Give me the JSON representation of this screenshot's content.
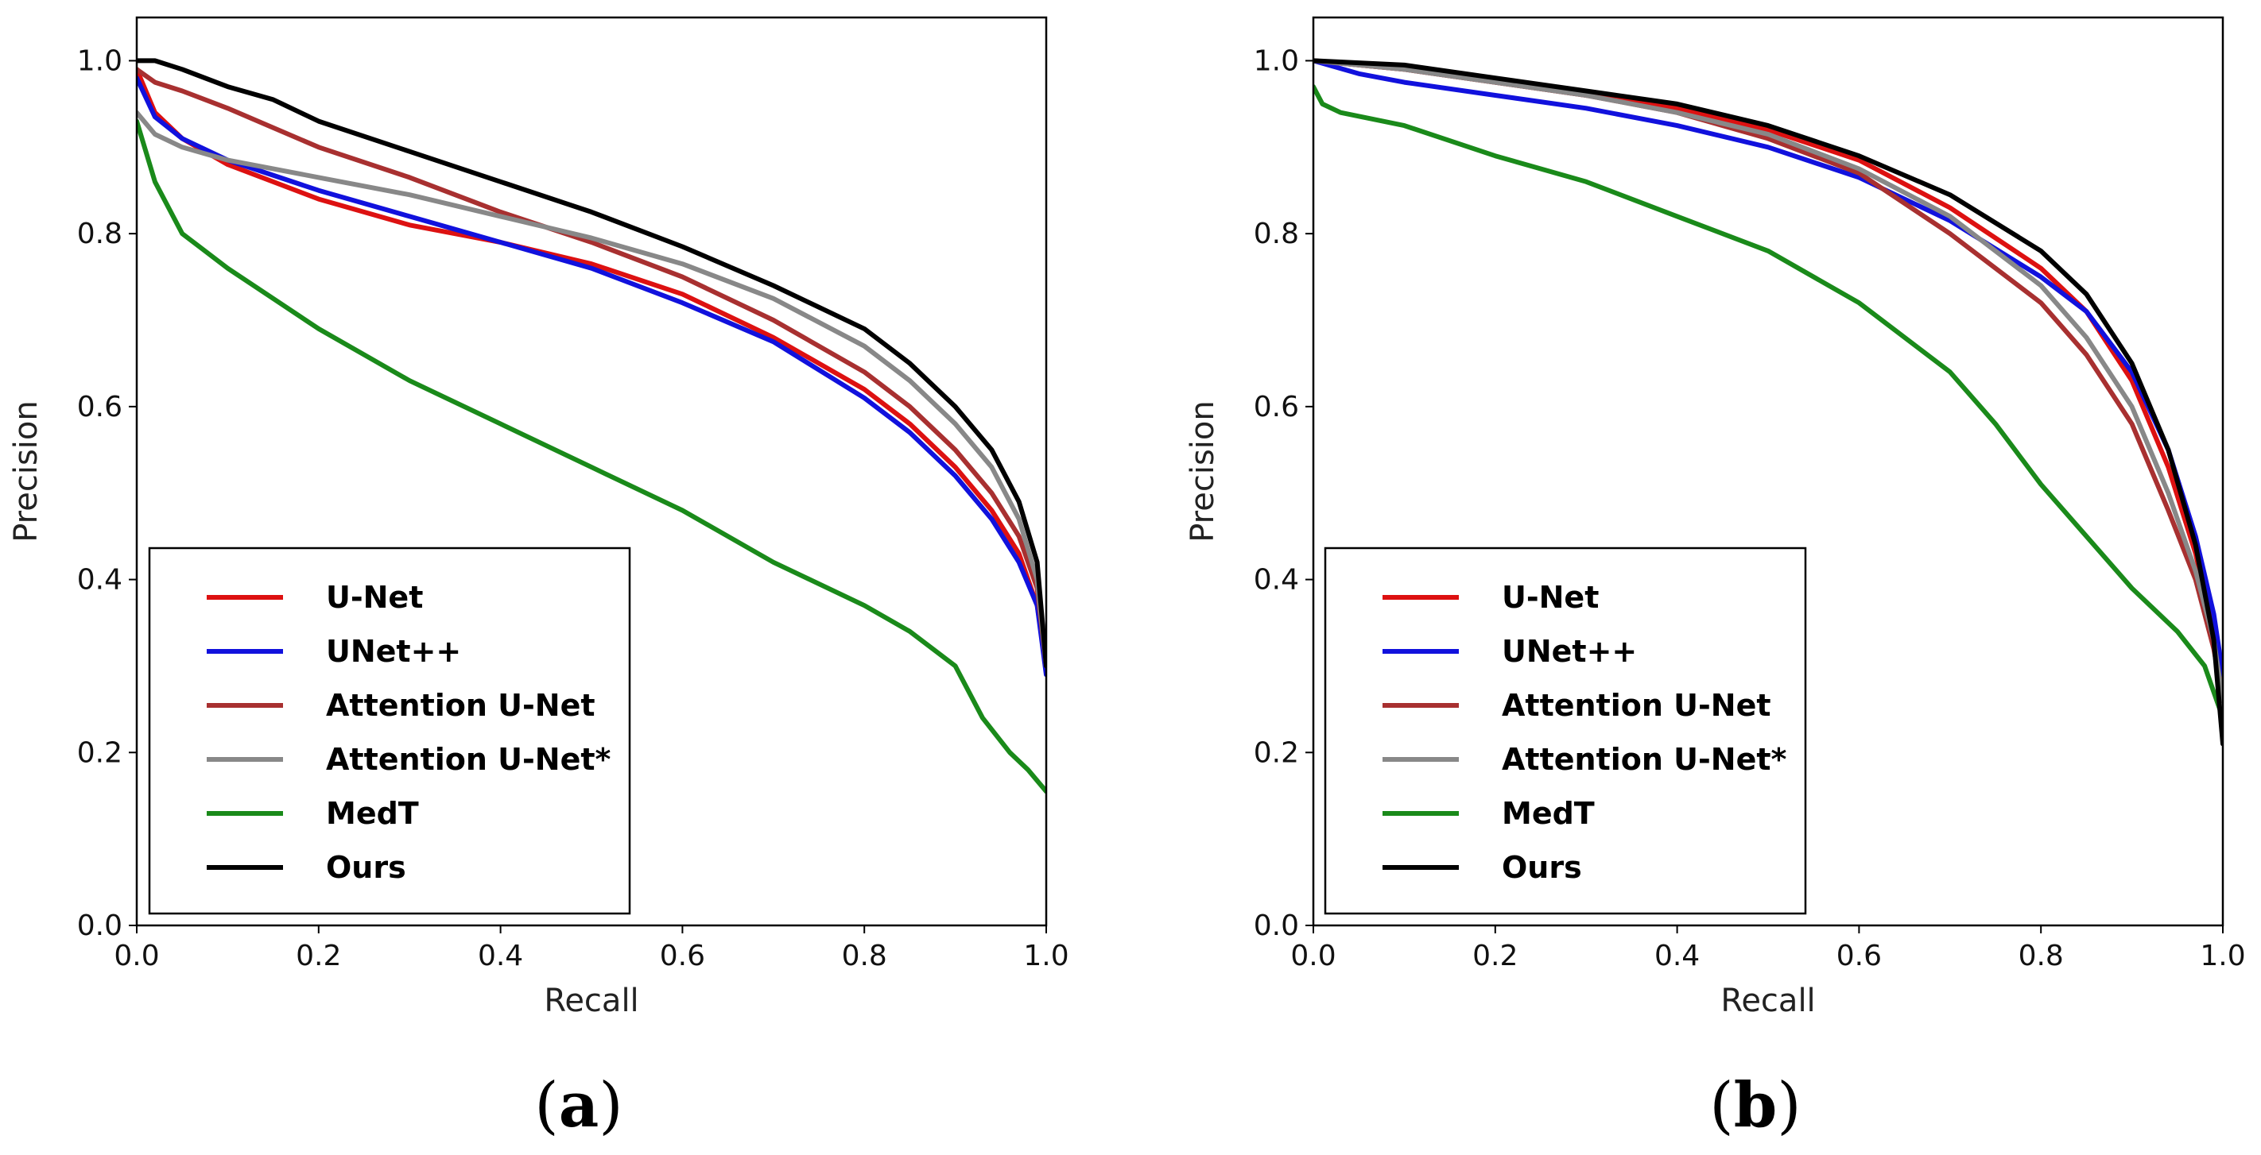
{
  "chart_data": [
    {
      "type": "line",
      "panel": "a",
      "caption": {
        "open": "(",
        "letter": "a",
        "close": ")"
      },
      "xlabel": "Recall",
      "ylabel": "Precision",
      "xlim": [
        0,
        1
      ],
      "ylim": [
        0,
        1.05
      ],
      "xticks": [
        "0.0",
        "0.2",
        "0.4",
        "0.6",
        "0.8",
        "1.0"
      ],
      "yticks": [
        "0.0",
        "0.2",
        "0.4",
        "0.6",
        "0.8",
        "1.0"
      ],
      "legend_position": "lower-left",
      "series": [
        {
          "name": "U-Net",
          "color": "#dd1111",
          "points": [
            [
              0,
              0.99
            ],
            [
              0.02,
              0.94
            ],
            [
              0.05,
              0.91
            ],
            [
              0.1,
              0.88
            ],
            [
              0.2,
              0.84
            ],
            [
              0.3,
              0.81
            ],
            [
              0.4,
              0.79
            ],
            [
              0.5,
              0.765
            ],
            [
              0.6,
              0.73
            ],
            [
              0.7,
              0.68
            ],
            [
              0.8,
              0.62
            ],
            [
              0.85,
              0.58
            ],
            [
              0.9,
              0.53
            ],
            [
              0.94,
              0.48
            ],
            [
              0.97,
              0.43
            ],
            [
              0.99,
              0.37
            ],
            [
              1.0,
              0.3
            ]
          ]
        },
        {
          "name": "UNet++",
          "color": "#1111dd",
          "points": [
            [
              0,
              0.98
            ],
            [
              0.02,
              0.935
            ],
            [
              0.05,
              0.91
            ],
            [
              0.1,
              0.885
            ],
            [
              0.2,
              0.85
            ],
            [
              0.3,
              0.82
            ],
            [
              0.4,
              0.79
            ],
            [
              0.5,
              0.76
            ],
            [
              0.6,
              0.72
            ],
            [
              0.7,
              0.675
            ],
            [
              0.8,
              0.61
            ],
            [
              0.85,
              0.57
            ],
            [
              0.9,
              0.52
            ],
            [
              0.94,
              0.47
            ],
            [
              0.97,
              0.42
            ],
            [
              0.99,
              0.37
            ],
            [
              1.0,
              0.29
            ]
          ]
        },
        {
          "name": "Attention U-Net",
          "color": "#a83030",
          "points": [
            [
              0,
              0.99
            ],
            [
              0.02,
              0.975
            ],
            [
              0.05,
              0.965
            ],
            [
              0.1,
              0.945
            ],
            [
              0.2,
              0.9
            ],
            [
              0.3,
              0.865
            ],
            [
              0.4,
              0.825
            ],
            [
              0.5,
              0.79
            ],
            [
              0.6,
              0.75
            ],
            [
              0.7,
              0.7
            ],
            [
              0.8,
              0.64
            ],
            [
              0.85,
              0.6
            ],
            [
              0.9,
              0.55
            ],
            [
              0.94,
              0.5
            ],
            [
              0.97,
              0.45
            ],
            [
              0.99,
              0.39
            ],
            [
              1.0,
              0.3
            ]
          ]
        },
        {
          "name": "Attention U-Net*",
          "color": "#888888",
          "points": [
            [
              0,
              0.94
            ],
            [
              0.02,
              0.915
            ],
            [
              0.05,
              0.9
            ],
            [
              0.1,
              0.885
            ],
            [
              0.2,
              0.865
            ],
            [
              0.3,
              0.845
            ],
            [
              0.4,
              0.82
            ],
            [
              0.5,
              0.795
            ],
            [
              0.6,
              0.765
            ],
            [
              0.7,
              0.725
            ],
            [
              0.8,
              0.67
            ],
            [
              0.85,
              0.63
            ],
            [
              0.9,
              0.58
            ],
            [
              0.94,
              0.53
            ],
            [
              0.97,
              0.47
            ],
            [
              0.99,
              0.4
            ],
            [
              1.0,
              0.3
            ]
          ]
        },
        {
          "name": "MedT",
          "color": "#1a8a1a",
          "points": [
            [
              0,
              0.93
            ],
            [
              0.02,
              0.86
            ],
            [
              0.05,
              0.8
            ],
            [
              0.1,
              0.76
            ],
            [
              0.2,
              0.69
            ],
            [
              0.3,
              0.63
            ],
            [
              0.4,
              0.58
            ],
            [
              0.5,
              0.53
            ],
            [
              0.6,
              0.48
            ],
            [
              0.7,
              0.42
            ],
            [
              0.8,
              0.37
            ],
            [
              0.85,
              0.34
            ],
            [
              0.9,
              0.3
            ],
            [
              0.93,
              0.24
            ],
            [
              0.96,
              0.2
            ],
            [
              0.98,
              0.18
            ],
            [
              1.0,
              0.155
            ]
          ]
        },
        {
          "name": "Ours",
          "color": "#000000",
          "points": [
            [
              0,
              1.0
            ],
            [
              0.02,
              1.0
            ],
            [
              0.05,
              0.99
            ],
            [
              0.1,
              0.97
            ],
            [
              0.15,
              0.955
            ],
            [
              0.2,
              0.93
            ],
            [
              0.3,
              0.895
            ],
            [
              0.4,
              0.86
            ],
            [
              0.5,
              0.825
            ],
            [
              0.6,
              0.785
            ],
            [
              0.7,
              0.74
            ],
            [
              0.8,
              0.69
            ],
            [
              0.85,
              0.65
            ],
            [
              0.9,
              0.6
            ],
            [
              0.94,
              0.55
            ],
            [
              0.97,
              0.49
            ],
            [
              0.99,
              0.42
            ],
            [
              1.0,
              0.3
            ]
          ]
        }
      ]
    },
    {
      "type": "line",
      "panel": "b",
      "caption": {
        "open": "(",
        "letter": "b",
        "close": ")"
      },
      "xlabel": "Recall",
      "ylabel": "Precision",
      "xlim": [
        0,
        1
      ],
      "ylim": [
        0,
        1.05
      ],
      "xticks": [
        "0.0",
        "0.2",
        "0.4",
        "0.6",
        "0.8",
        "1.0"
      ],
      "yticks": [
        "0.0",
        "0.2",
        "0.4",
        "0.6",
        "0.8",
        "1.0"
      ],
      "legend_position": "lower-left",
      "series": [
        {
          "name": "U-Net",
          "color": "#dd1111",
          "points": [
            [
              0,
              1.0
            ],
            [
              0.1,
              0.99
            ],
            [
              0.2,
              0.975
            ],
            [
              0.3,
              0.96
            ],
            [
              0.4,
              0.945
            ],
            [
              0.5,
              0.92
            ],
            [
              0.6,
              0.885
            ],
            [
              0.7,
              0.83
            ],
            [
              0.8,
              0.76
            ],
            [
              0.85,
              0.71
            ],
            [
              0.9,
              0.63
            ],
            [
              0.94,
              0.53
            ],
            [
              0.97,
              0.43
            ],
            [
              0.99,
              0.34
            ],
            [
              1.0,
              0.27
            ]
          ]
        },
        {
          "name": "UNet++",
          "color": "#1111dd",
          "points": [
            [
              0,
              1.0
            ],
            [
              0.05,
              0.985
            ],
            [
              0.1,
              0.975
            ],
            [
              0.2,
              0.96
            ],
            [
              0.3,
              0.945
            ],
            [
              0.4,
              0.925
            ],
            [
              0.5,
              0.9
            ],
            [
              0.6,
              0.865
            ],
            [
              0.7,
              0.815
            ],
            [
              0.8,
              0.75
            ],
            [
              0.85,
              0.71
            ],
            [
              0.9,
              0.64
            ],
            [
              0.94,
              0.55
            ],
            [
              0.97,
              0.45
            ],
            [
              0.99,
              0.36
            ],
            [
              1.0,
              0.29
            ]
          ]
        },
        {
          "name": "Attention U-Net",
          "color": "#a83030",
          "points": [
            [
              0,
              1.0
            ],
            [
              0.1,
              0.99
            ],
            [
              0.2,
              0.975
            ],
            [
              0.3,
              0.96
            ],
            [
              0.4,
              0.94
            ],
            [
              0.5,
              0.91
            ],
            [
              0.6,
              0.87
            ],
            [
              0.7,
              0.8
            ],
            [
              0.8,
              0.72
            ],
            [
              0.85,
              0.66
            ],
            [
              0.9,
              0.58
            ],
            [
              0.94,
              0.48
            ],
            [
              0.97,
              0.4
            ],
            [
              0.99,
              0.32
            ],
            [
              1.0,
              0.26
            ]
          ]
        },
        {
          "name": "Attention U-Net*",
          "color": "#888888",
          "points": [
            [
              0,
              1.0
            ],
            [
              0.1,
              0.99
            ],
            [
              0.2,
              0.975
            ],
            [
              0.3,
              0.96
            ],
            [
              0.4,
              0.94
            ],
            [
              0.5,
              0.915
            ],
            [
              0.6,
              0.875
            ],
            [
              0.7,
              0.82
            ],
            [
              0.8,
              0.74
            ],
            [
              0.85,
              0.68
            ],
            [
              0.9,
              0.6
            ],
            [
              0.94,
              0.5
            ],
            [
              0.97,
              0.41
            ],
            [
              0.99,
              0.33
            ],
            [
              1.0,
              0.26
            ]
          ]
        },
        {
          "name": "MedT",
          "color": "#1a8a1a",
          "points": [
            [
              0,
              0.97
            ],
            [
              0.01,
              0.95
            ],
            [
              0.03,
              0.94
            ],
            [
              0.1,
              0.925
            ],
            [
              0.2,
              0.89
            ],
            [
              0.3,
              0.86
            ],
            [
              0.4,
              0.82
            ],
            [
              0.5,
              0.78
            ],
            [
              0.6,
              0.72
            ],
            [
              0.7,
              0.64
            ],
            [
              0.75,
              0.58
            ],
            [
              0.8,
              0.51
            ],
            [
              0.85,
              0.45
            ],
            [
              0.9,
              0.39
            ],
            [
              0.95,
              0.34
            ],
            [
              0.98,
              0.3
            ],
            [
              1.0,
              0.24
            ]
          ]
        },
        {
          "name": "Ours",
          "color": "#000000",
          "points": [
            [
              0,
              1.0
            ],
            [
              0.1,
              0.995
            ],
            [
              0.2,
              0.98
            ],
            [
              0.3,
              0.965
            ],
            [
              0.4,
              0.95
            ],
            [
              0.5,
              0.925
            ],
            [
              0.6,
              0.89
            ],
            [
              0.7,
              0.845
            ],
            [
              0.8,
              0.78
            ],
            [
              0.85,
              0.73
            ],
            [
              0.9,
              0.65
            ],
            [
              0.94,
              0.55
            ],
            [
              0.97,
              0.44
            ],
            [
              0.99,
              0.33
            ],
            [
              1.0,
              0.21
            ]
          ]
        }
      ]
    }
  ]
}
